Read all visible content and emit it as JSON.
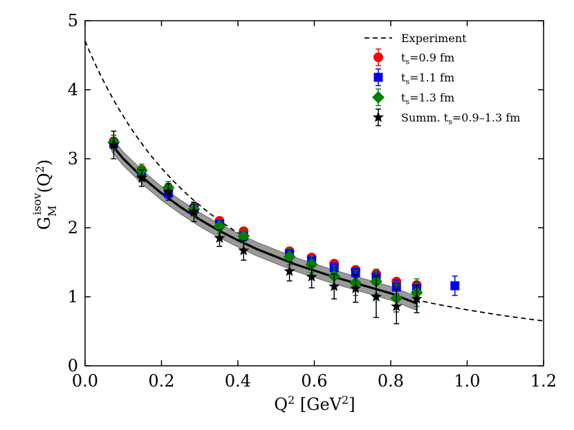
{
  "chart_data": {
    "type": "scatter",
    "title": "",
    "xlabel_main": "Q",
    "xlabel_sup": "2",
    "xlabel_unit_open": " [GeV",
    "xlabel_unit_sup": "2",
    "xlabel_unit_close": "]",
    "ylabel_main": "G",
    "ylabel_sub": "M",
    "ylabel_sup": "isov",
    "ylabel_arg_open": "(Q",
    "ylabel_arg_sup": "2",
    "ylabel_arg_close": ")",
    "xlim": [
      0.0,
      1.2
    ],
    "ylim": [
      0,
      5
    ],
    "xticks": [
      "0.0",
      "0.2",
      "0.4",
      "0.6",
      "0.8",
      "1.0",
      "1.2"
    ],
    "yticks": [
      "0",
      "1",
      "2",
      "3",
      "4",
      "5"
    ],
    "legend_position": "top-right",
    "experiment": {
      "name": "Experiment",
      "g0": 4.706,
      "lambda2": 0.71,
      "x_range": [
        0.0,
        1.2
      ]
    },
    "fit": {
      "x": [
        0.07,
        0.1,
        0.15,
        0.2,
        0.25,
        0.3,
        0.35,
        0.4,
        0.45,
        0.5,
        0.55,
        0.6,
        0.65,
        0.7,
        0.75,
        0.8,
        0.87
      ],
      "y": [
        3.2,
        3.0,
        2.73,
        2.5,
        2.3,
        2.12,
        1.96,
        1.82,
        1.69,
        1.58,
        1.47,
        1.38,
        1.29,
        1.21,
        1.13,
        1.05,
        0.9
      ],
      "band": 0.1
    },
    "series": [
      {
        "name": "t_s=0.9 fm",
        "label_main": "t",
        "label_sub": "s",
        "label_rest": "=0.9 fm",
        "marker": "circle",
        "color": "#ff0000",
        "x": [
          0.075,
          0.148,
          0.218,
          0.285,
          0.352,
          0.415,
          0.535,
          0.593,
          0.652,
          0.708,
          0.762,
          0.815,
          0.868
        ],
        "y": [
          3.25,
          2.84,
          2.58,
          2.3,
          2.1,
          1.95,
          1.66,
          1.57,
          1.48,
          1.39,
          1.33,
          1.22,
          1.17
        ],
        "err": [
          0.06,
          0.05,
          0.05,
          0.05,
          0.04,
          0.04,
          0.04,
          0.04,
          0.04,
          0.04,
          0.04,
          0.04,
          0.04
        ]
      },
      {
        "name": "t_s=1.1 fm",
        "label_main": "t",
        "label_sub": "s",
        "label_rest": "=1.1 fm",
        "marker": "square",
        "color": "#0000ff",
        "x": [
          0.075,
          0.148,
          0.218,
          0.285,
          0.352,
          0.415,
          0.535,
          0.593,
          0.652,
          0.708,
          0.762,
          0.815,
          0.868,
          0.968
        ],
        "y": [
          3.22,
          2.8,
          2.5,
          2.27,
          2.05,
          1.88,
          1.62,
          1.53,
          1.42,
          1.35,
          1.28,
          1.14,
          1.12,
          1.16
        ],
        "err": [
          0.08,
          0.07,
          0.07,
          0.07,
          0.07,
          0.06,
          0.06,
          0.06,
          0.07,
          0.07,
          0.08,
          0.1,
          0.1,
          0.14
        ]
      },
      {
        "name": "t_s=1.3 fm",
        "label_main": "t",
        "label_sub": "s",
        "label_rest": "=1.3 fm",
        "marker": "diamond",
        "color": "#008000",
        "x": [
          0.075,
          0.148,
          0.218,
          0.285,
          0.352,
          0.415,
          0.535,
          0.593,
          0.652,
          0.708,
          0.762,
          0.815,
          0.868
        ],
        "y": [
          3.24,
          2.83,
          2.58,
          2.27,
          2.02,
          1.88,
          1.58,
          1.47,
          1.3,
          1.2,
          1.22,
          0.98,
          1.06
        ],
        "err": [
          0.1,
          0.09,
          0.09,
          0.1,
          0.1,
          0.1,
          0.12,
          0.12,
          0.15,
          0.18,
          0.18,
          0.2,
          0.2
        ]
      },
      {
        "name": "Summ. t_s=0.9-1.3 fm",
        "label_main": "Summ. t",
        "label_sub": "s",
        "label_rest": "=0.9–1.3 fm",
        "marker": "star",
        "color": "#000000",
        "x": [
          0.075,
          0.148,
          0.218,
          0.285,
          0.352,
          0.415,
          0.535,
          0.593,
          0.652,
          0.708,
          0.762,
          0.815,
          0.868
        ],
        "y": [
          3.2,
          2.72,
          2.52,
          2.23,
          1.85,
          1.67,
          1.37,
          1.29,
          1.15,
          1.12,
          1.0,
          0.86,
          0.97
        ],
        "err": [
          0.2,
          0.12,
          0.12,
          0.14,
          0.12,
          0.14,
          0.14,
          0.16,
          0.18,
          0.2,
          0.3,
          0.25,
          0.2
        ]
      }
    ]
  }
}
